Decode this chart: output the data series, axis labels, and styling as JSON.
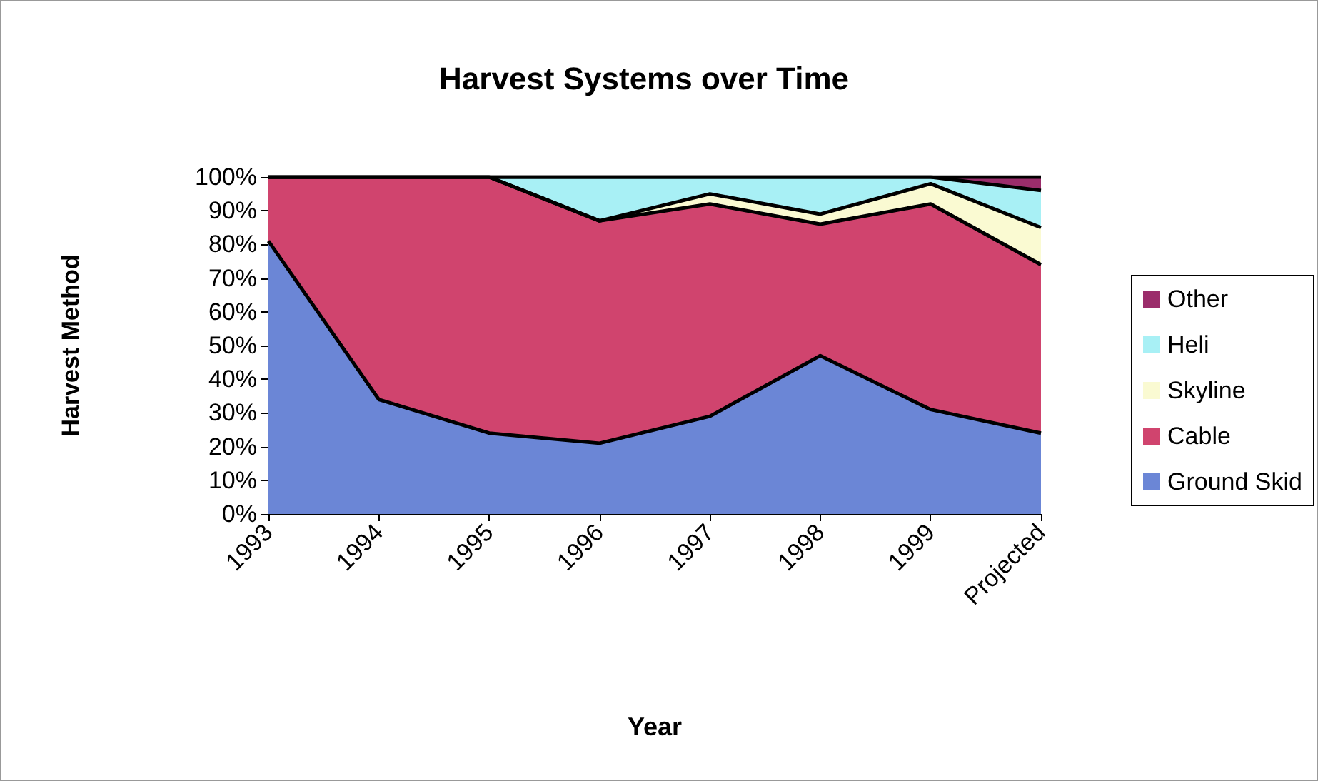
{
  "chart_data": {
    "type": "area",
    "title": "Harvest Systems over Time",
    "xlabel": "Year",
    "ylabel": "Harvest Method",
    "categories": [
      "1993",
      "1994",
      "1995",
      "1996",
      "1997",
      "1998",
      "1999",
      "Projected"
    ],
    "series": [
      {
        "name": "Ground Skid",
        "color": "#6b86d6",
        "values": [
          81,
          34,
          24,
          21,
          29,
          47,
          31,
          24
        ]
      },
      {
        "name": "Cable",
        "color": "#d0446e",
        "values": [
          19,
          66,
          76,
          66,
          63,
          39,
          61,
          50
        ]
      },
      {
        "name": "Skyline",
        "color": "#fafad2",
        "values": [
          0,
          0,
          0,
          0,
          3,
          3,
          6,
          11
        ]
      },
      {
        "name": "Heli",
        "color": "#a8f0f5",
        "values": [
          0,
          0,
          0,
          13,
          5,
          11,
          2,
          11
        ]
      },
      {
        "name": "Other",
        "color": "#9b2d6b",
        "values": [
          0,
          0,
          0,
          0,
          0,
          0,
          0,
          4
        ]
      }
    ],
    "stacked": true,
    "ylim": [
      0,
      100
    ],
    "yticks": [
      {
        "value": 0,
        "label": "0%"
      },
      {
        "value": 10,
        "label": "10%"
      },
      {
        "value": 20,
        "label": "20%"
      },
      {
        "value": 30,
        "label": "30%"
      },
      {
        "value": 40,
        "label": "40%"
      },
      {
        "value": 50,
        "label": "50%"
      },
      {
        "value": 60,
        "label": "60%"
      },
      {
        "value": 70,
        "label": "70%"
      },
      {
        "value": 80,
        "label": "80%"
      },
      {
        "value": 90,
        "label": "90%"
      },
      {
        "value": 100,
        "label": "100%"
      }
    ],
    "grid": false,
    "legend": "right",
    "marker": "none",
    "line_style": "solid"
  }
}
